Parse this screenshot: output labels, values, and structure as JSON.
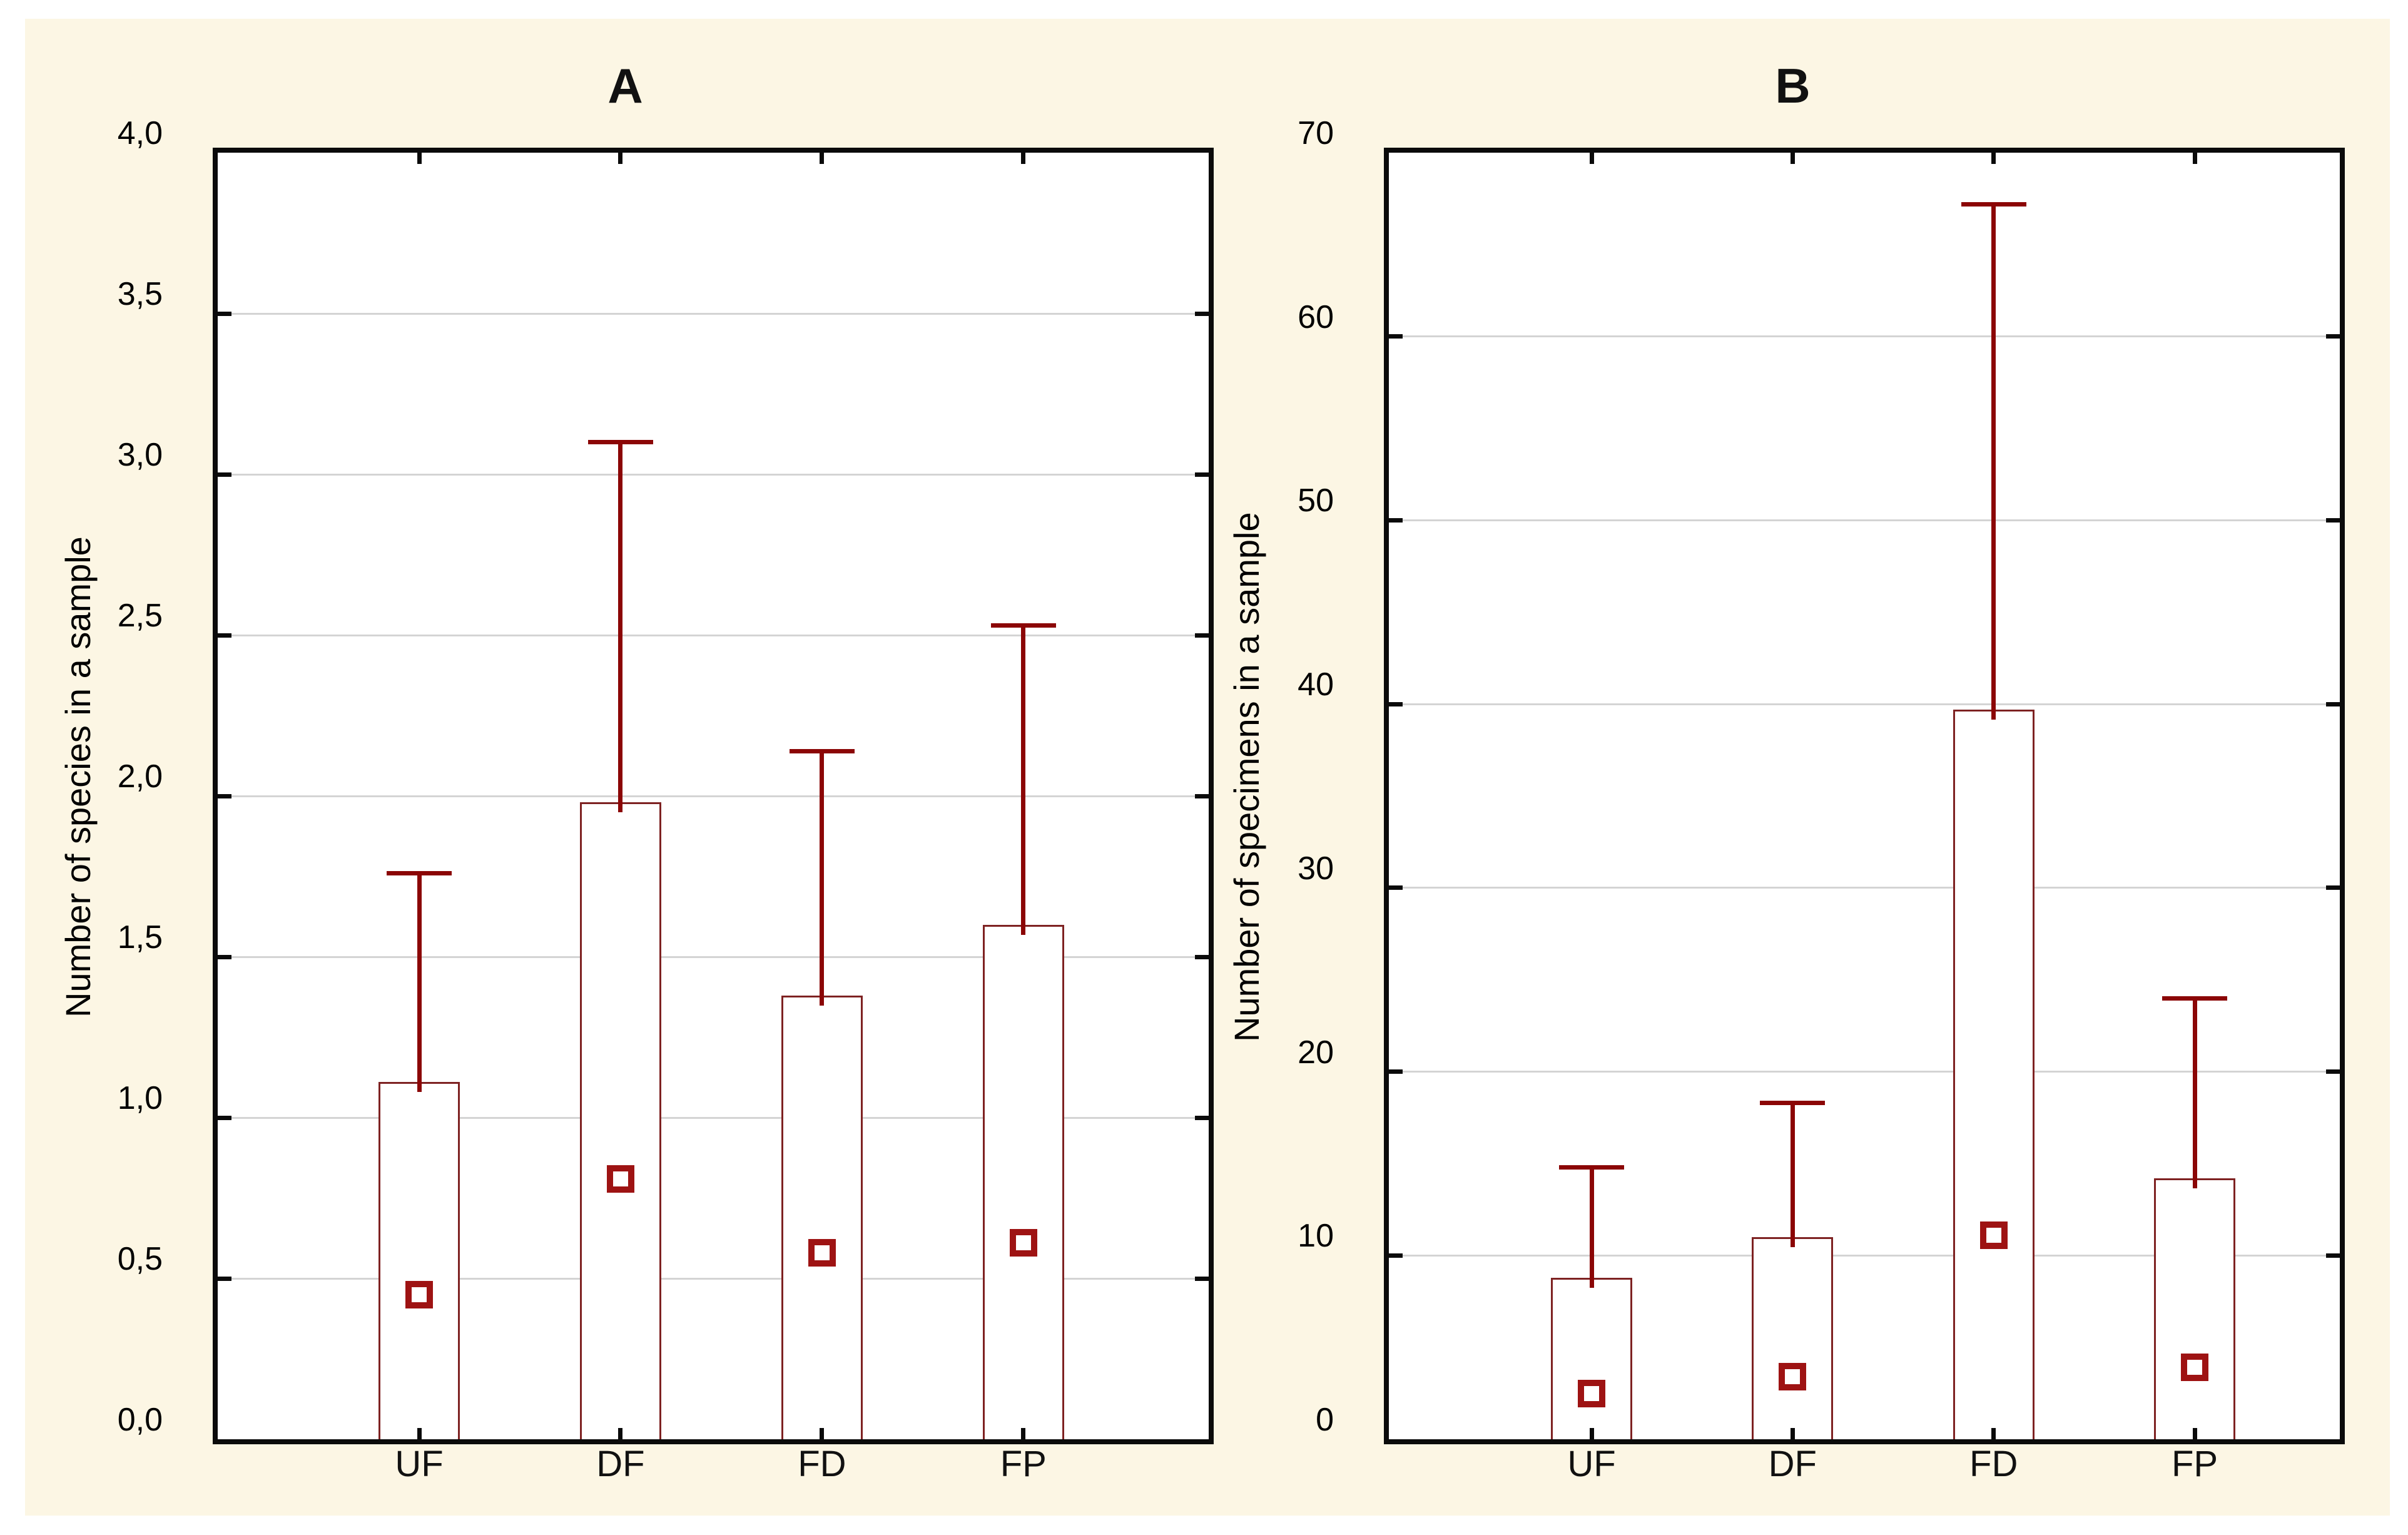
{
  "canvas": {
    "page_background": "#FFFFFF",
    "background": "#FCF6E4"
  },
  "colors": {
    "axis_frame": "#0B0B0B",
    "gridline": "#D4D4D4",
    "plot_background": "#FFFFFF",
    "bar_fill": "#FFFFFF",
    "bar_outline": "#7E2222",
    "whisker": "#8B0606",
    "marker_outline": "#9E1313",
    "text": "#000000"
  },
  "chart_data": [
    {
      "type": "bar",
      "panel_label": "A",
      "title": "A",
      "xlabel": "",
      "ylabel": "Number of species in a sample",
      "categories": [
        "UF",
        "DF",
        "FD",
        "FP"
      ],
      "ylim": [
        0,
        4
      ],
      "ytick_step": 0.5,
      "ytick_labels": [
        "0,0",
        "0,5",
        "1,0",
        "1,5",
        "2,0",
        "2,5",
        "3,0",
        "3,5",
        "4,0"
      ],
      "grid": "horizontal gridlines at each tick",
      "legend": "none",
      "marker_shape": "open-square",
      "series": [
        {
          "name": "column-top (bar height)",
          "values": [
            1.11,
            1.98,
            1.38,
            1.6
          ]
        },
        {
          "name": "upper-whisker-top",
          "values": [
            1.76,
            3.1,
            2.14,
            2.53
          ]
        },
        {
          "name": "square-marker",
          "values": [
            0.45,
            0.81,
            0.58,
            0.61
          ]
        }
      ]
    },
    {
      "type": "bar",
      "panel_label": "B",
      "title": "B",
      "xlabel": "",
      "ylabel": "Number of specimens in a sample",
      "categories": [
        "UF",
        "DF",
        "FD",
        "FP"
      ],
      "ylim": [
        0,
        70
      ],
      "ytick_step": 10,
      "ytick_labels": [
        "0",
        "10",
        "20",
        "30",
        "40",
        "50",
        "60",
        "70"
      ],
      "grid": "horizontal gridlines at each tick",
      "legend": "none",
      "marker_shape": "open-square",
      "series": [
        {
          "name": "column-top (bar height)",
          "values": [
            8.8,
            11.0,
            39.7,
            14.2
          ]
        },
        {
          "name": "upper-whisker-top",
          "values": [
            14.8,
            18.3,
            67.2,
            24.0
          ]
        },
        {
          "name": "square-marker",
          "values": [
            2.5,
            3.4,
            11.1,
            3.9
          ]
        }
      ]
    }
  ]
}
